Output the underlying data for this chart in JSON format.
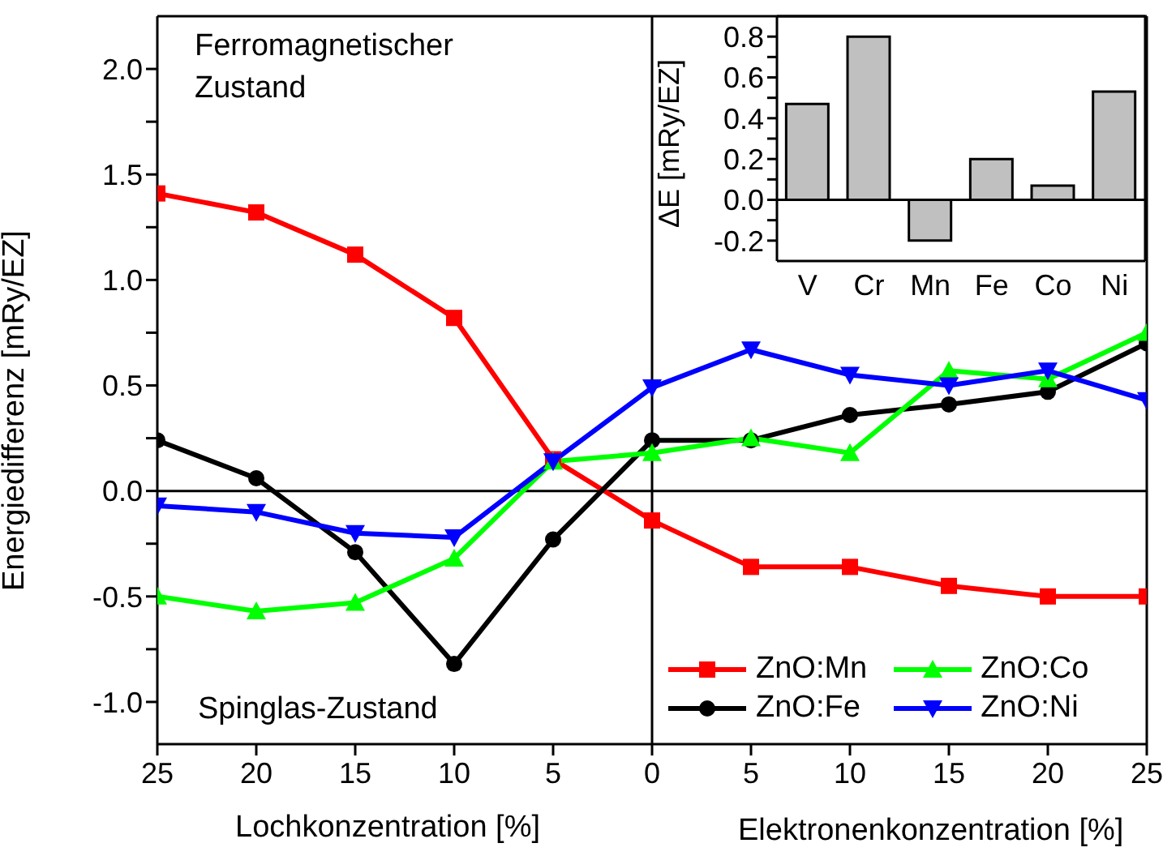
{
  "chart_data": [
    {
      "type": "line",
      "ylabel": "Energiedifferenz [mRy/EZ]",
      "xlabel": "Lochkonzentration [%]",
      "annotations": [
        "Ferromagnetischer Zustand",
        "Spinglas-Zustand",
        "Elektronenkonzentration [%]"
      ],
      "x": [
        -25,
        -20,
        -15,
        -10,
        -5,
        0,
        5,
        10,
        15,
        20,
        25
      ],
      "xlim": [
        -25,
        25
      ],
      "xticks": [
        {
          "value": -25,
          "label": "25"
        },
        {
          "value": -20,
          "label": "20"
        },
        {
          "value": -15,
          "label": "15"
        },
        {
          "value": -10,
          "label": "10"
        },
        {
          "value": -5,
          "label": "5"
        },
        0,
        5,
        10,
        15,
        20,
        25
      ],
      "ylim": [
        -1.2,
        2.25
      ],
      "yticks": [
        {
          "value": -1.0,
          "label": "-1.0"
        },
        {
          "value": -0.75,
          "label": null
        },
        {
          "value": -0.5,
          "label": "-0.5"
        },
        {
          "value": -0.25,
          "label": null
        },
        {
          "value": 0,
          "label": "0.0"
        },
        {
          "value": 0.25,
          "label": null
        },
        {
          "value": 0.5,
          "label": "0.5"
        },
        {
          "value": 0.75,
          "label": null
        },
        {
          "value": 1.0,
          "label": "1.0"
        },
        {
          "value": 1.25,
          "label": null
        },
        {
          "value": 1.5,
          "label": "1.5"
        },
        {
          "value": 1.75,
          "label": null
        },
        {
          "value": 2.0,
          "label": "2.0"
        }
      ],
      "ref_lines": [
        {
          "axis": "x",
          "value": 0,
          "color": "#000000"
        },
        {
          "axis": "y",
          "value": 0,
          "color": "#000000"
        }
      ],
      "legend": "bottom right",
      "grid": false,
      "series": [
        {
          "name": "ZnO:Mn",
          "color": "#ff0000",
          "marker": "square",
          "values": [
            1.41,
            1.32,
            1.12,
            0.82,
            0.15,
            -0.14,
            -0.36,
            -0.36,
            -0.45,
            -0.5,
            -0.5
          ]
        },
        {
          "name": "ZnO:Fe",
          "color": "#000000",
          "marker": "circle",
          "values": [
            0.24,
            0.06,
            -0.29,
            -0.82,
            -0.23,
            0.24,
            0.24,
            0.36,
            0.41,
            0.47,
            0.7
          ]
        },
        {
          "name": "ZnO:Co",
          "color": "#00ff00",
          "marker": "triangle",
          "values": [
            -0.5,
            -0.57,
            -0.53,
            -0.32,
            0.14,
            0.18,
            0.25,
            0.18,
            0.57,
            0.53,
            0.75
          ]
        },
        {
          "name": "ZnO:Ni",
          "color": "#0000ff",
          "marker": "triangle-down",
          "values": [
            -0.07,
            -0.1,
            -0.2,
            -0.22,
            0.14,
            0.49,
            0.67,
            0.55,
            0.5,
            0.57,
            0.43
          ]
        }
      ]
    },
    {
      "type": "bar",
      "ylabel": "ΔE [mRy/EZ]",
      "categories": [
        "V",
        "Cr",
        "Mn",
        "Fe",
        "Co",
        "Ni"
      ],
      "values": [
        0.47,
        0.8,
        -0.2,
        0.2,
        0.07,
        0.53
      ],
      "color": "#c0c0c0",
      "ylim": [
        -0.3,
        0.9
      ],
      "yticks": [
        {
          "value": -0.2,
          "label": "-0.2"
        },
        {
          "value": -0.1,
          "label": null
        },
        {
          "value": 0,
          "label": "0.0"
        },
        {
          "value": 0.1,
          "label": null
        },
        {
          "value": 0.2,
          "label": "0.2"
        },
        {
          "value": 0.3,
          "label": null
        },
        {
          "value": 0.4,
          "label": "0.4"
        },
        {
          "value": 0.5,
          "label": null
        },
        {
          "value": 0.6,
          "label": "0.6"
        },
        {
          "value": 0.7,
          "label": null
        },
        {
          "value": 0.8,
          "label": "0.8"
        }
      ],
      "ref_lines": [
        {
          "axis": "y",
          "value": 0,
          "color": "#000000"
        }
      ],
      "grid": false
    }
  ]
}
